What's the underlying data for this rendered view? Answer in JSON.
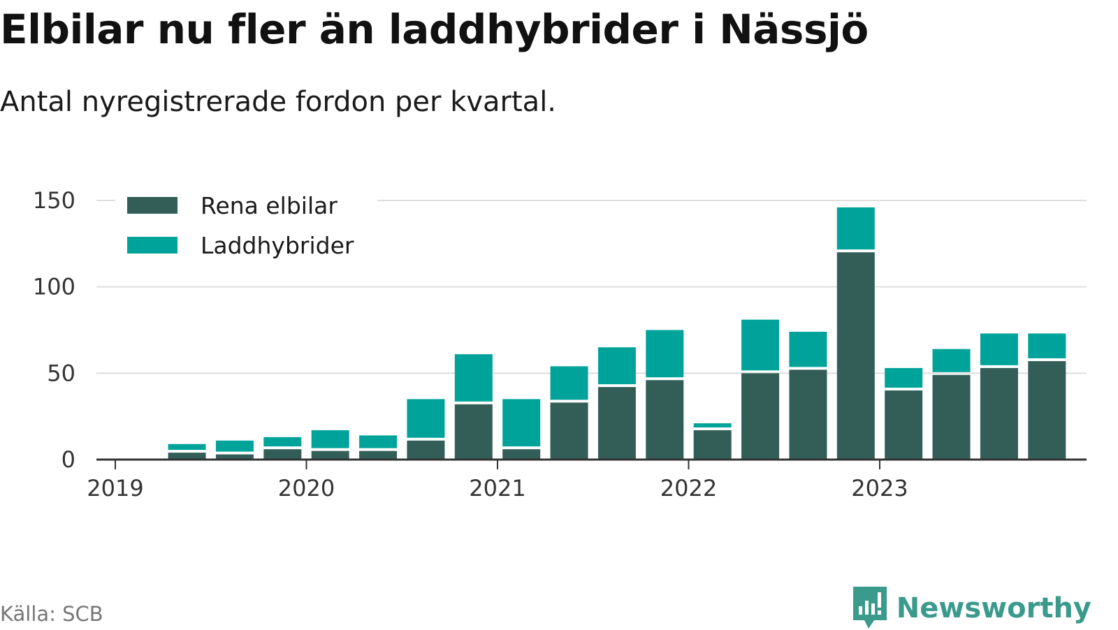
{
  "header": {
    "title": "Elbilar nu fler än laddhybrider i Nässjö",
    "subtitle": "Antal nyregistrerade fordon per kvartal."
  },
  "footer": {
    "source": "Källa: SCB",
    "brand": "Newsworthy",
    "brand_icon": "bar-chart-bubble-icon",
    "brand_color": "#3a9a8c"
  },
  "chart_data": {
    "type": "bar",
    "stacked": true,
    "title": "",
    "xlabel": "",
    "ylabel": "",
    "ylim": [
      0,
      150
    ],
    "y_ticks": [
      0,
      50,
      100,
      150
    ],
    "x_ticks": [
      "2019",
      "2020",
      "2021",
      "2022",
      "2023"
    ],
    "grid": true,
    "legend_position": "top-left",
    "categories": [
      "2019 Q2",
      "2019 Q3",
      "2019 Q4",
      "2020 Q1",
      "2020 Q2",
      "2020 Q3",
      "2020 Q4",
      "2021 Q1",
      "2021 Q2",
      "2021 Q3",
      "2021 Q4",
      "2022 Q1",
      "2022 Q2",
      "2022 Q3",
      "2022 Q4",
      "2023 Q1",
      "2023 Q2",
      "2023 Q3",
      "2023 Q4"
    ],
    "series": [
      {
        "name": "Rena elbilar",
        "color": "#335e58",
        "values": [
          4,
          3,
          6,
          5,
          5,
          11,
          32,
          6,
          33,
          42,
          46,
          17,
          50,
          52,
          120,
          40,
          49,
          53,
          57
        ]
      },
      {
        "name": "Laddhybrider",
        "color": "#00a39a",
        "values": [
          5,
          8,
          7,
          12,
          9,
          24,
          29,
          29,
          21,
          23,
          29,
          4,
          31,
          22,
          26,
          13,
          15,
          20,
          16
        ]
      }
    ]
  }
}
